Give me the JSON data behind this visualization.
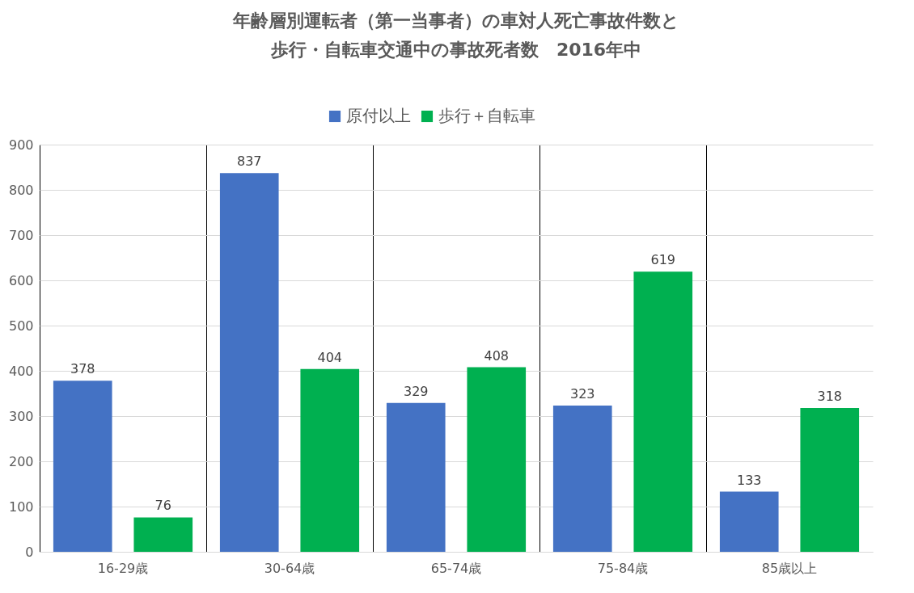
{
  "chart_data": {
    "type": "bar",
    "title": "年齢層別運転者（第一当事者）の車対人死亡事故件数と",
    "subtitle": "歩行・自転車交通中の事故死者数　2016年中",
    "categories": [
      "16-29歳",
      "30-64歳",
      "65-74歳",
      "75-84歳",
      "85歳以上"
    ],
    "series": [
      {
        "name": "原付以上",
        "color": "#4472c4",
        "values": [
          378,
          837,
          329,
          323,
          133
        ]
      },
      {
        "name": "歩行＋自転車",
        "color": "#00b050",
        "values": [
          76,
          404,
          408,
          619,
          318
        ]
      }
    ],
    "ylim": [
      0,
      900
    ],
    "yticks": [
      0,
      100,
      200,
      300,
      400,
      500,
      600,
      700,
      800,
      900
    ],
    "grid": true,
    "legend": "top",
    "data_labels": true
  }
}
